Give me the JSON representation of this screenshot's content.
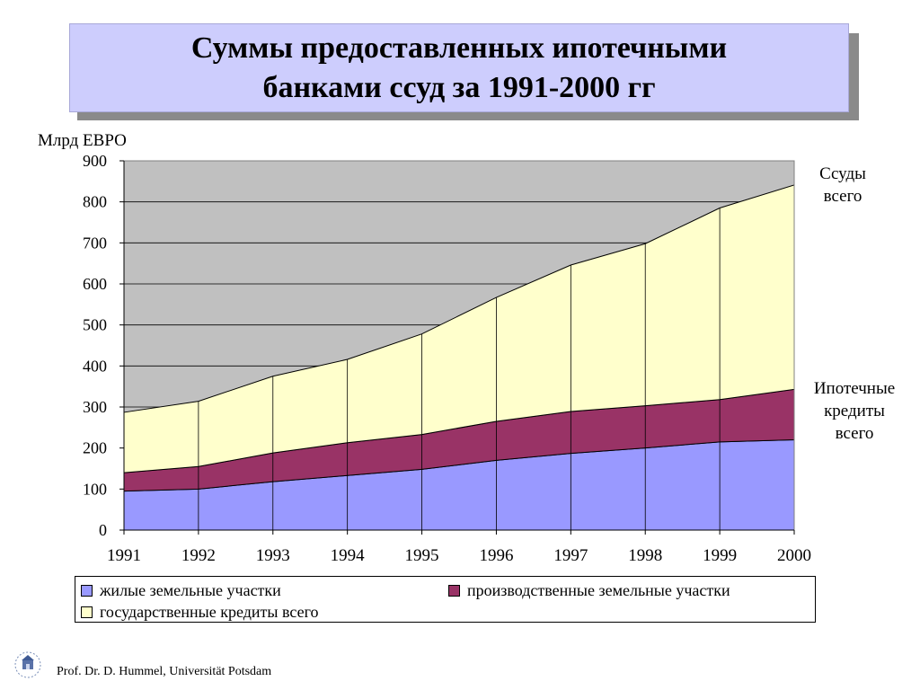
{
  "title": {
    "line1": "Суммы предоставленных ипотечными",
    "line2": "банками ссуд за 1991-2000 гг"
  },
  "labels": {
    "unit": "Млрд ЕВРО",
    "total_loans": [
      "Ссуды",
      "всего"
    ],
    "mortgage_total": [
      "Ипотечные",
      "кредиты",
      "всего"
    ]
  },
  "footer": {
    "author": "Prof. Dr. D. Hummel, Universität Potsdam"
  },
  "colors": {
    "plot_background": "#c0c0c0",
    "residential": "#9999ff",
    "industrial": "#993366",
    "state": "#ffffcc",
    "title_background": "#cdcdfd"
  },
  "chart_data": {
    "type": "area",
    "stacked": true,
    "title": "Суммы предоставленных ипотечными банками ссуд за 1991-2000 гг",
    "ylabel": "Млрд ЕВРО",
    "xlabel": "",
    "categories": [
      "1991",
      "1992",
      "1993",
      "1994",
      "1995",
      "1996",
      "1997",
      "1998",
      "1999",
      "2000"
    ],
    "ylim": [
      0,
      900
    ],
    "yticks": [
      0,
      100,
      200,
      300,
      400,
      500,
      600,
      700,
      800,
      900
    ],
    "grid": true,
    "legend_position": "bottom",
    "series": [
      {
        "name": "жилые земельные участки",
        "color": "#9999ff",
        "values": [
          95,
          100,
          118,
          133,
          148,
          170,
          187,
          200,
          215,
          220
        ]
      },
      {
        "name": "производственные земельные участки",
        "color": "#993366",
        "values": [
          45,
          55,
          70,
          80,
          85,
          95,
          102,
          103,
          103,
          123
        ]
      },
      {
        "name": "государственные кредиты всего",
        "color": "#ffffcc",
        "values": [
          147,
          159,
          187,
          203,
          245,
          302,
          357,
          395,
          467,
          498
        ]
      }
    ]
  }
}
